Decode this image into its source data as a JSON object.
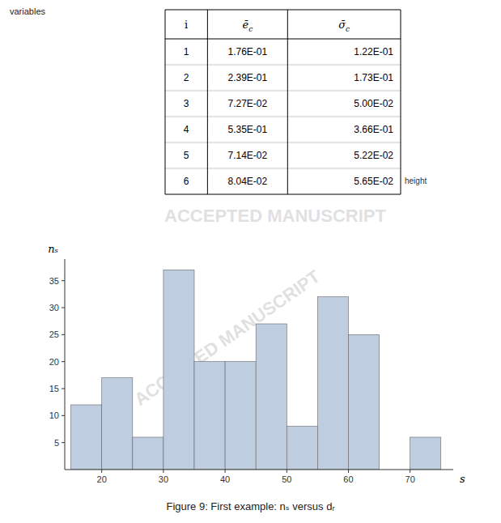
{
  "chart_data": [
    {
      "type": "table",
      "title": "variables",
      "columns": [
        "i",
        "ēc",
        "σ̄c"
      ],
      "rows": [
        [
          1,
          "1.76E-01",
          "1.22E-01"
        ],
        [
          2,
          "2.39E-01",
          "1.73E-01"
        ],
        [
          3,
          "7.27E-02",
          "5.00E-02"
        ],
        [
          4,
          "5.35E-01",
          "3.66E-01"
        ],
        [
          5,
          "7.14E-02",
          "5.22E-02"
        ],
        [
          6,
          "8.04E-02",
          "5.65E-02"
        ]
      ],
      "annotations": [
        "height",
        "ACCEPTED MANUSCRIPT"
      ]
    },
    {
      "type": "histogram",
      "title": "Figure 9:  First example:  nₛ versus dᵣ",
      "xlabel": "s",
      "ylabel": "nₛ",
      "bins": [
        15,
        20,
        25,
        30,
        35,
        40,
        45,
        50,
        55,
        60,
        65,
        70,
        75
      ],
      "values": [
        12,
        17,
        6,
        37,
        20,
        20,
        27,
        8,
        32,
        25,
        0,
        6
      ],
      "color": "#bfcde0",
      "xlim": [
        14,
        77
      ],
      "xticks": [
        20,
        30,
        40,
        50,
        60,
        70
      ],
      "ylim": [
        0,
        39
      ],
      "yticks": [
        5,
        10,
        15,
        20,
        25,
        30,
        35
      ],
      "annotations": [
        "ACCEPTED MANUSCRIPT"
      ]
    }
  ]
}
